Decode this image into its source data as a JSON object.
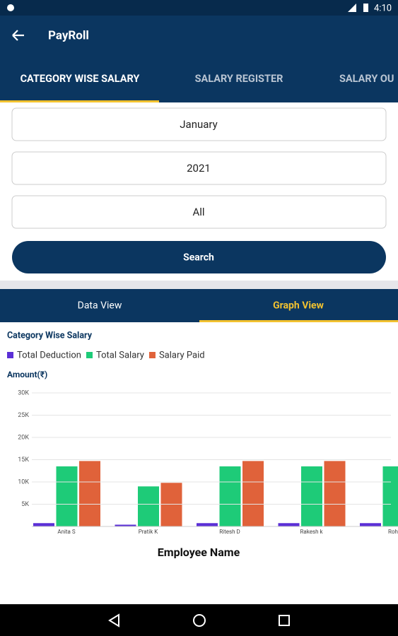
{
  "status_bar": {
    "time": "4:10"
  },
  "app_bar": {
    "title": "PayRoll"
  },
  "tabs": [
    "CATEGORY WISE SALARY",
    "SALARY REGISTER",
    "SALARY OU"
  ],
  "filters": {
    "month": "January",
    "year": "2021",
    "category": "All"
  },
  "search_button": "Search",
  "view_tabs": [
    "Data View",
    "Graph View"
  ],
  "chart_data": {
    "type": "bar",
    "title": "Category Wise Salary",
    "y_label": "Amount(₹)",
    "x_label": "Employee Name",
    "categories": [
      "Anita S",
      "Pratik K",
      "Ritesh D",
      "Rakesh k",
      "Roh"
    ],
    "series": [
      {
        "name": "Total Deduction",
        "color": "#5b2fd6",
        "values": [
          750,
          400,
          750,
          750,
          750
        ]
      },
      {
        "name": "Total Salary",
        "color": "#1ecb78",
        "values": [
          13500,
          9000,
          13500,
          13500,
          13500
        ]
      },
      {
        "name": "Salary Paid",
        "color": "#e0623a",
        "values": [
          14700,
          9800,
          14700,
          14700,
          null
        ]
      }
    ],
    "ylim": [
      0,
      30000
    ],
    "yticks": [
      {
        "value": 5000,
        "label": "5K"
      },
      {
        "value": 10000,
        "label": "10K"
      },
      {
        "value": 15000,
        "label": "15K"
      },
      {
        "value": 20000,
        "label": "20K"
      },
      {
        "value": 25000,
        "label": "25K"
      },
      {
        "value": 30000,
        "label": "30K"
      }
    ],
    "grid": true
  }
}
